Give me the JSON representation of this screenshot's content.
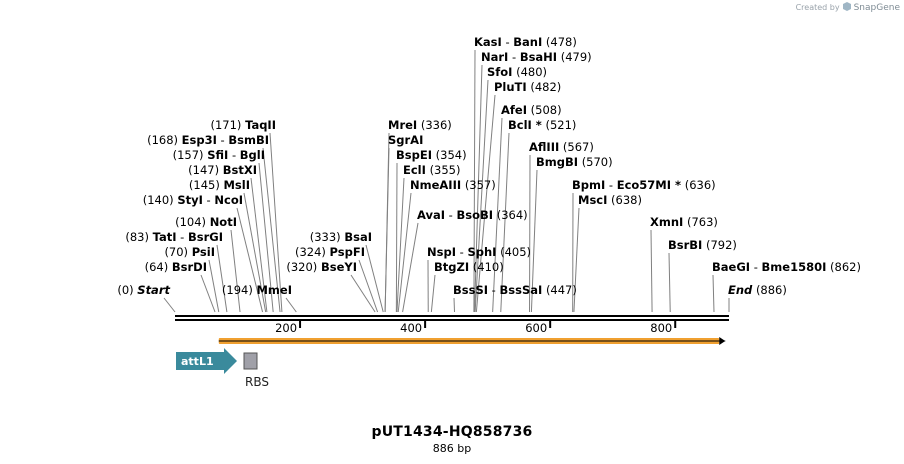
{
  "credit": {
    "prefix": "Created by",
    "brand": "SnapGene"
  },
  "map": {
    "name": "pUT1434-HQ858736",
    "length_text": "886 bp"
  },
  "ruler": {
    "length_bp": 886,
    "ticks": [
      {
        "bp": 200,
        "label": "200"
      },
      {
        "bp": 400,
        "label": "400"
      },
      {
        "bp": 600,
        "label": "600"
      },
      {
        "bp": 800,
        "label": "800"
      }
    ]
  },
  "sites": [
    {
      "key": "kasi",
      "pos": 478,
      "names": [
        "KasI",
        "BanI"
      ],
      "num": "(478)",
      "side": "right"
    },
    {
      "key": "nari",
      "pos": 479,
      "names": [
        "NarI",
        "BsaHI"
      ],
      "num": "(479)",
      "side": "right"
    },
    {
      "key": "sfoi",
      "pos": 480,
      "names": [
        "SfoI"
      ],
      "num": "(480)",
      "side": "right"
    },
    {
      "key": "pluti",
      "pos": 482,
      "names": [
        "PluTI"
      ],
      "num": "(482)",
      "side": "right"
    },
    {
      "key": "afei",
      "pos": 508,
      "names": [
        "AfeI"
      ],
      "num": "(508)",
      "side": "right"
    },
    {
      "key": "bcli",
      "pos": 521,
      "names": [
        "BclI *"
      ],
      "num": "(521)",
      "side": "right"
    },
    {
      "key": "afliii",
      "pos": 567,
      "names": [
        "AflIII"
      ],
      "num": "(567)",
      "side": "right"
    },
    {
      "key": "bmgbi",
      "pos": 570,
      "names": [
        "BmgBI"
      ],
      "num": "(570)",
      "side": "right"
    },
    {
      "key": "bpmi",
      "pos": 636,
      "names": [
        "BpmI",
        "Eco57MI *"
      ],
      "num": "(636)",
      "side": "right"
    },
    {
      "key": "msci",
      "pos": 638,
      "names": [
        "MscI"
      ],
      "num": "(638)",
      "side": "right"
    },
    {
      "key": "xmni",
      "pos": 763,
      "names": [
        "XmnI"
      ],
      "num": "(763)",
      "side": "right"
    },
    {
      "key": "bsrbi",
      "pos": 792,
      "names": [
        "BsrBI"
      ],
      "num": "(792)",
      "side": "right"
    },
    {
      "key": "baegi",
      "pos": 862,
      "names": [
        "BaeGI",
        "Bme1580I"
      ],
      "num": "(862)",
      "side": "right"
    },
    {
      "key": "end",
      "pos": 886,
      "names": [
        "End"
      ],
      "num": "(886)",
      "side": "right",
      "italic": true
    },
    {
      "key": "mrei",
      "pos": 336,
      "names": [
        "MreI"
      ],
      "num": "(336)",
      "side": "right"
    },
    {
      "key": "sgrai",
      "pos": 336,
      "names": [
        "SgrAI"
      ],
      "num": "",
      "side": "right"
    },
    {
      "key": "bspei",
      "pos": 354,
      "names": [
        "BspEI"
      ],
      "num": "(354)",
      "side": "right"
    },
    {
      "key": "ecli",
      "pos": 355,
      "names": [
        "EclI"
      ],
      "num": "(355)",
      "side": "right"
    },
    {
      "key": "nmeaiii",
      "pos": 357,
      "names": [
        "NmeAIII"
      ],
      "num": "(357)",
      "side": "right"
    },
    {
      "key": "avai",
      "pos": 364,
      "names": [
        "AvaI",
        "BsoBI"
      ],
      "num": "(364)",
      "side": "right"
    },
    {
      "key": "nspi",
      "pos": 405,
      "names": [
        "NspI",
        "SphI"
      ],
      "num": "(405)",
      "side": "right"
    },
    {
      "key": "btgzi",
      "pos": 410,
      "names": [
        "BtgZI"
      ],
      "num": "(410)",
      "side": "right"
    },
    {
      "key": "bsssi",
      "pos": 447,
      "names": [
        "BssSI",
        "BssSaI"
      ],
      "num": "(447)",
      "side": "right"
    },
    {
      "key": "taqii",
      "pos": 171,
      "names": [
        "TaqII"
      ],
      "num": "(171)",
      "side": "left"
    },
    {
      "key": "esp3i",
      "pos": 168,
      "names": [
        "Esp3I",
        "BsmBI"
      ],
      "num": "(168)",
      "side": "left"
    },
    {
      "key": "sfii",
      "pos": 157,
      "names": [
        "SfiI",
        "BglI"
      ],
      "num": "(157)",
      "side": "left"
    },
    {
      "key": "bstxi",
      "pos": 147,
      "names": [
        "BstXI"
      ],
      "num": "(147)",
      "side": "left"
    },
    {
      "key": "msli",
      "pos": 145,
      "names": [
        "MslI"
      ],
      "num": "(145)",
      "side": "left"
    },
    {
      "key": "styi",
      "pos": 140,
      "names": [
        "StyI",
        "NcoI"
      ],
      "num": "(140)",
      "side": "left"
    },
    {
      "key": "noti",
      "pos": 104,
      "names": [
        "NotI"
      ],
      "num": "(104)",
      "side": "left"
    },
    {
      "key": "tati",
      "pos": 83,
      "names": [
        "TatI",
        "BsrGI"
      ],
      "num": "(83)",
      "side": "left"
    },
    {
      "key": "psii",
      "pos": 70,
      "names": [
        "PsiI"
      ],
      "num": "(70)",
      "side": "left"
    },
    {
      "key": "bsrdi",
      "pos": 64,
      "names": [
        "BsrDI"
      ],
      "num": "(64)",
      "side": "left"
    },
    {
      "key": "start",
      "pos": 0,
      "names": [
        "Start"
      ],
      "num": "(0)",
      "side": "left",
      "italic": true
    },
    {
      "key": "bsai",
      "pos": 333,
      "names": [
        "BsaI"
      ],
      "num": "(333)",
      "side": "left"
    },
    {
      "key": "pspfi",
      "pos": 324,
      "names": [
        "PspFI"
      ],
      "num": "(324)",
      "side": "left"
    },
    {
      "key": "bseyi",
      "pos": 320,
      "names": [
        "BseYI"
      ],
      "num": "(320)",
      "side": "left"
    },
    {
      "key": "mmei",
      "pos": 194,
      "names": [
        "MmeI"
      ],
      "num": "(194)",
      "side": "left"
    }
  ],
  "features": [
    {
      "key": "attl1",
      "label": "attL1",
      "start": 0,
      "end": 100,
      "color": "#3a8a9c"
    },
    {
      "key": "rbs",
      "label": "RBS",
      "start": 110,
      "end": 130,
      "color": "#a0a0a8"
    },
    {
      "key": "orf",
      "label": "",
      "start": 70,
      "end": 880,
      "color": "#f0a030",
      "direction": "forward"
    }
  ]
}
